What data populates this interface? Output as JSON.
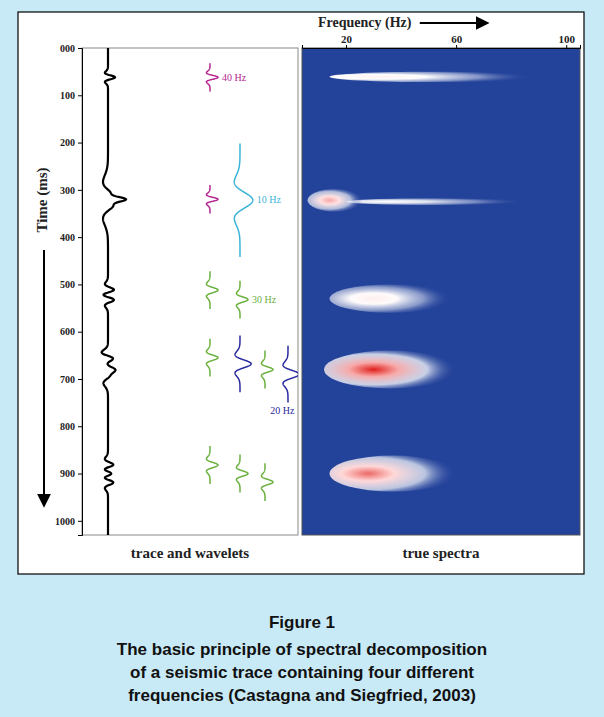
{
  "chart_data": [
    {
      "type": "line",
      "title": "trace and wavelets",
      "ylabel": "Time (ms)",
      "color": "#000000",
      "tick_labels": "y",
      "ylim": [
        0,
        1030
      ],
      "yticks": [
        {
          "value": 0,
          "label": "000"
        },
        100,
        200,
        300,
        400,
        500,
        600,
        700,
        800,
        900,
        1000
      ],
      "wavelets": [
        {
          "time": 62,
          "frequency": 40,
          "amplitude": 1
        },
        {
          "time": 320,
          "frequency": 40,
          "amplitude": 1
        },
        {
          "time": 322,
          "frequency": 10,
          "amplitude": 1.6
        },
        {
          "time": 512,
          "frequency": 30,
          "amplitude": 1
        },
        {
          "time": 532,
          "frequency": 30,
          "amplitude": 1
        },
        {
          "time": 655,
          "frequency": 30,
          "amplitude": 1
        },
        {
          "time": 668,
          "frequency": 20,
          "amplitude": 1.4
        },
        {
          "time": 680,
          "frequency": 30,
          "amplitude": 1
        },
        {
          "time": 690,
          "frequency": 20,
          "amplitude": 1.4
        },
        {
          "time": 882,
          "frequency": 30,
          "amplitude": 1
        },
        {
          "time": 900,
          "frequency": 30,
          "amplitude": 1
        },
        {
          "time": 918,
          "frequency": 30,
          "amplitude": 1
        }
      ],
      "frequency_labels": [
        {
          "frequency": 40,
          "label": "40 Hz",
          "time": 64,
          "color": "#b5268f"
        },
        {
          "frequency": 10,
          "label": "10 Hz",
          "time": 322,
          "color": "#3cb4d8"
        },
        {
          "frequency": 30,
          "label": "30 Hz",
          "time": 534,
          "color": "#6ab03c"
        },
        {
          "frequency": 20,
          "label": "20 Hz",
          "time": 768,
          "color": "#2a2aa0"
        }
      ]
    },
    {
      "type": "heatmap",
      "title": "true spectra",
      "xlabel": "Frequency (Hz)",
      "tick_labels": "x",
      "xlim": [
        4,
        105
      ],
      "xticks": [
        20,
        60,
        100
      ],
      "ylim": [
        0,
        1030
      ],
      "blobs": [
        {
          "time_span": [
            50,
            72
          ],
          "frequency_span": [
            14,
            88
          ],
          "peak_frequency": 32,
          "amplitude": 0.6
        },
        {
          "time_span": [
            318,
            332
          ],
          "frequency_span": [
            20,
            85
          ],
          "peak_frequency": 36,
          "amplitude": 0.5
        },
        {
          "time_span": [
            298,
            346
          ],
          "frequency_span": [
            6,
            26
          ],
          "peak_frequency": 14,
          "amplitude": 0.85
        },
        {
          "time_span": [
            500,
            560
          ],
          "frequency_span": [
            14,
            58
          ],
          "peak_frequency": 30,
          "amplitude": 0.62
        },
        {
          "time_span": [
            640,
            720
          ],
          "frequency_span": [
            12,
            60
          ],
          "peak_frequency": 30,
          "amplitude": 1.0
        },
        {
          "time_span": [
            862,
            938
          ],
          "frequency_span": [
            14,
            60
          ],
          "peak_frequency": 28,
          "amplitude": 0.92
        }
      ]
    }
  ],
  "caption": {
    "figure": "Figure 1",
    "lines": [
      "The basic principle of spectral decomposition",
      "of a seismic trace containing four different",
      "frequencies (Castagna and Siegfried, 2003)"
    ]
  }
}
